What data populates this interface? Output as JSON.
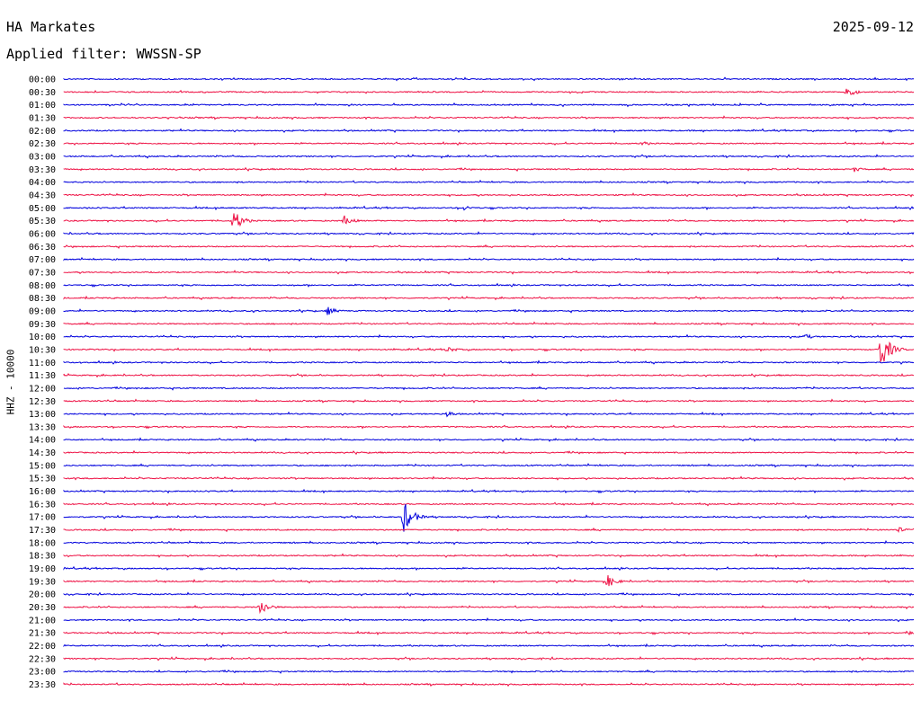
{
  "header": {
    "station": "HA Markates",
    "date": "2025-09-12",
    "filter": "Applied filter: WWSSN-SP"
  },
  "chart_data": {
    "type": "line",
    "ylabel": "HHZ - 10000",
    "colors": [
      "#0000dd",
      "#ee1144"
    ],
    "time_labels": [
      "00:00",
      "00:30",
      "01:00",
      "01:30",
      "02:00",
      "02:30",
      "03:00",
      "03:30",
      "04:00",
      "04:30",
      "05:00",
      "05:30",
      "06:00",
      "06:30",
      "07:00",
      "07:30",
      "08:00",
      "08:30",
      "09:00",
      "09:30",
      "10:00",
      "10:30",
      "11:00",
      "11:30",
      "12:00",
      "12:30",
      "13:00",
      "13:30",
      "14:00",
      "14:30",
      "15:00",
      "15:30",
      "16:00",
      "16:30",
      "17:00",
      "17:30",
      "18:00",
      "18:30",
      "19:00",
      "19:30",
      "20:00",
      "20:30",
      "21:00",
      "21:30",
      "22:00",
      "22:30",
      "23:00",
      "23:30"
    ],
    "events": [
      {
        "row": 1,
        "t": 0.92,
        "amp": 7
      },
      {
        "row": 5,
        "t": 0.68,
        "amp": 3
      },
      {
        "row": 7,
        "t": 0.93,
        "amp": 3
      },
      {
        "row": 10,
        "t": 0.47,
        "amp": 3
      },
      {
        "row": 11,
        "t": 0.2,
        "amp": 12
      },
      {
        "row": 11,
        "t": 0.33,
        "amp": 6
      },
      {
        "row": 18,
        "t": 0.31,
        "amp": 5
      },
      {
        "row": 20,
        "t": 0.87,
        "amp": 4
      },
      {
        "row": 21,
        "t": 0.96,
        "amp": 25
      },
      {
        "row": 21,
        "t": 0.45,
        "amp": 4
      },
      {
        "row": 26,
        "t": 0.45,
        "amp": 4
      },
      {
        "row": 34,
        "t": 0.4,
        "amp": 18
      },
      {
        "row": 35,
        "t": 0.98,
        "amp": 4
      },
      {
        "row": 39,
        "t": 0.64,
        "amp": 7
      },
      {
        "row": 41,
        "t": 0.23,
        "amp": 10
      },
      {
        "row": 43,
        "t": 0.99,
        "amp": 3
      }
    ]
  }
}
